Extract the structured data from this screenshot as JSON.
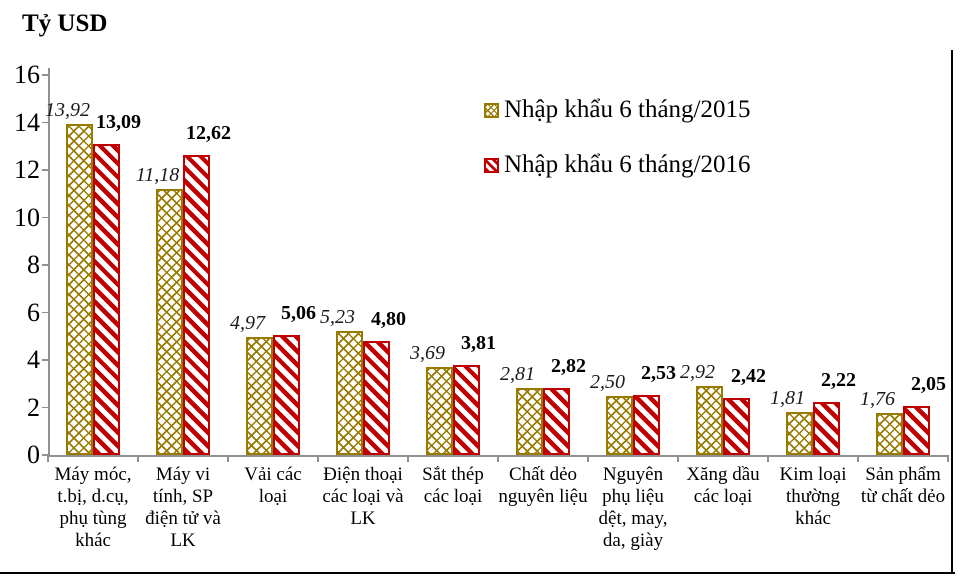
{
  "title": "Tỷ USD",
  "colors": {
    "s2015": "#997A00",
    "s2016": "#C00000",
    "axis": "#909090",
    "frame": "#000000",
    "text": "#000000"
  },
  "chart_data": {
    "type": "bar",
    "title": "Tỷ USD",
    "xlabel": "",
    "ylabel": "Tỷ USD",
    "ylim": [
      0,
      16
    ],
    "ytick_step": 2,
    "grid": false,
    "legend_position": "top-center-inside",
    "categories": [
      "Máy móc, t.bị, d.cụ, phụ tùng khác",
      "Máy vi tính, SP điện tử và LK",
      "Vải các loại",
      "Điện thoại các loại và LK",
      "Sắt thép các loại",
      "Chất dẻo nguyên liệu",
      "Nguyên phụ liệu dệt, may, da, giày",
      "Xăng dầu các loại",
      "Kim loại thường khác",
      "Sản phẩm từ chất dẻo"
    ],
    "series": [
      {
        "name": "Nhập khẩu 6 tháng/2015",
        "values": [
          13.92,
          11.18,
          4.97,
          5.23,
          3.69,
          2.81,
          2.5,
          2.92,
          1.81,
          1.76
        ],
        "labels": [
          "13,92",
          "11,18",
          "4,97",
          "5,23",
          "3,69",
          "2,81",
          "2,50",
          "2,92",
          "1,81",
          "1,76"
        ],
        "pattern": "gold-crosshatch"
      },
      {
        "name": "Nhập khẩu 6 tháng/2016",
        "values": [
          13.09,
          12.62,
          5.06,
          4.8,
          3.81,
          2.82,
          2.53,
          2.42,
          2.22,
          2.05
        ],
        "labels": [
          "13,09",
          "12,62",
          "5,06",
          "4,80",
          "3,81",
          "2,82",
          "2,53",
          "2,42",
          "2,22",
          "2,05"
        ],
        "pattern": "red-diagonal"
      }
    ]
  }
}
